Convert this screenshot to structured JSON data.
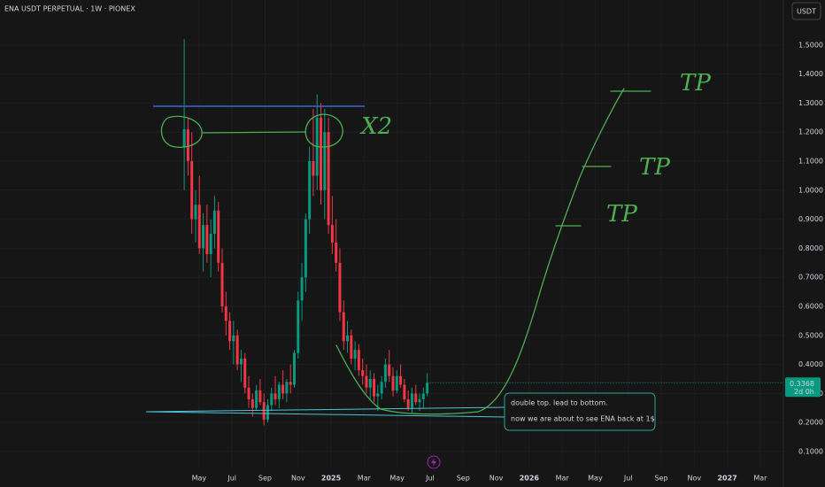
{
  "chart_data": {
    "type": "candlestick",
    "title": "ENA USDT PERPETUAL · 1W · PIONEX",
    "currency": "USDT",
    "countdown": "2d 0h",
    "up_color": "#089981",
    "down_color": "#f23645",
    "x": [
      3.1,
      3.33,
      3.56,
      3.79,
      4.02,
      4.25,
      4.48,
      4.71,
      4.94,
      5.17,
      5.4,
      5.63,
      5.86,
      6.09,
      6.32,
      6.55,
      6.78,
      7.01,
      7.24,
      7.47,
      7.7,
      7.93,
      8.16,
      8.39,
      8.62,
      8.85,
      9.08,
      9.31,
      9.54,
      9.77,
      10.0,
      10.23,
      10.46,
      10.69,
      10.92,
      11.15,
      11.38,
      11.61,
      11.84,
      12.07,
      12.3,
      12.53,
      12.76,
      12.99,
      13.22,
      13.45,
      13.68,
      13.91,
      14.14,
      14.37,
      14.6,
      14.83,
      15.06,
      15.29,
      15.52,
      15.75,
      15.98,
      16.21,
      16.44,
      16.67,
      16.9,
      17.13,
      17.36,
      17.59,
      17.82
    ],
    "open": [
      1.15,
      1.21,
      1.1,
      0.9,
      0.95,
      0.8,
      0.88,
      0.78,
      0.85,
      0.93,
      0.75,
      0.6,
      0.55,
      0.48,
      0.5,
      0.4,
      0.42,
      0.32,
      0.28,
      0.25,
      0.31,
      0.27,
      0.21,
      0.26,
      0.3,
      0.28,
      0.33,
      0.3,
      0.34,
      0.33,
      0.44,
      0.62,
      0.7,
      0.9,
      1.1,
      1.05,
      1.25,
      1.0,
      1.2,
      0.88,
      0.82,
      0.75,
      0.58,
      0.48,
      0.5,
      0.42,
      0.45,
      0.38,
      0.36,
      0.32,
      0.35,
      0.29,
      0.3,
      0.34,
      0.4,
      0.36,
      0.31,
      0.36,
      0.33,
      0.28,
      0.25,
      0.3,
      0.27,
      0.28,
      0.3
    ],
    "high": [
      1.52,
      1.25,
      1.2,
      1.0,
      1.05,
      0.92,
      0.95,
      0.9,
      0.98,
      0.96,
      0.8,
      0.65,
      0.58,
      0.55,
      0.52,
      0.45,
      0.44,
      0.36,
      0.3,
      0.33,
      0.35,
      0.3,
      0.28,
      0.32,
      0.36,
      0.34,
      0.38,
      0.35,
      0.4,
      0.45,
      0.65,
      0.75,
      0.92,
      1.15,
      1.28,
      1.33,
      1.3,
      1.28,
      1.25,
      0.98,
      0.9,
      0.8,
      0.62,
      0.55,
      0.52,
      0.48,
      0.47,
      0.42,
      0.4,
      0.38,
      0.37,
      0.33,
      0.36,
      0.42,
      0.45,
      0.39,
      0.38,
      0.4,
      0.35,
      0.31,
      0.32,
      0.33,
      0.3,
      0.32,
      0.37
    ],
    "low": [
      1.0,
      1.05,
      0.85,
      0.82,
      0.78,
      0.72,
      0.75,
      0.7,
      0.8,
      0.72,
      0.58,
      0.5,
      0.45,
      0.4,
      0.38,
      0.34,
      0.3,
      0.25,
      0.22,
      0.24,
      0.26,
      0.19,
      0.2,
      0.24,
      0.26,
      0.25,
      0.28,
      0.27,
      0.3,
      0.32,
      0.42,
      0.55,
      0.65,
      0.85,
      0.98,
      1.0,
      0.95,
      0.9,
      0.85,
      0.78,
      0.72,
      0.55,
      0.45,
      0.44,
      0.4,
      0.38,
      0.36,
      0.33,
      0.3,
      0.28,
      0.27,
      0.24,
      0.28,
      0.32,
      0.34,
      0.29,
      0.3,
      0.32,
      0.27,
      0.24,
      0.23,
      0.26,
      0.24,
      0.25,
      0.29
    ],
    "close": [
      1.21,
      1.1,
      0.9,
      0.95,
      0.8,
      0.88,
      0.78,
      0.85,
      0.93,
      0.75,
      0.6,
      0.55,
      0.48,
      0.5,
      0.4,
      0.42,
      0.32,
      0.28,
      0.25,
      0.31,
      0.27,
      0.21,
      0.26,
      0.3,
      0.28,
      0.33,
      0.3,
      0.34,
      0.33,
      0.44,
      0.62,
      0.7,
      0.9,
      1.1,
      1.05,
      1.25,
      1.0,
      1.2,
      0.88,
      0.82,
      0.75,
      0.58,
      0.48,
      0.5,
      0.42,
      0.45,
      0.38,
      0.36,
      0.32,
      0.35,
      0.29,
      0.3,
      0.34,
      0.4,
      0.36,
      0.31,
      0.36,
      0.33,
      0.28,
      0.25,
      0.3,
      0.27,
      0.28,
      0.3,
      0.3368
    ],
    "xlim": [
      -8.06,
      39.4
    ],
    "xticks": [
      {
        "value": 4,
        "label": "May"
      },
      {
        "value": 6,
        "label": "Jul"
      },
      {
        "value": 8,
        "label": "Sep"
      },
      {
        "value": 10,
        "label": "Nov"
      },
      {
        "value": 12,
        "label": "2025"
      },
      {
        "value": 14,
        "label": "Mar"
      },
      {
        "value": 16,
        "label": "May"
      },
      {
        "value": 18,
        "label": "Jul"
      },
      {
        "value": 20,
        "label": "Sep"
      },
      {
        "value": 22,
        "label": "Nov"
      },
      {
        "value": 24,
        "label": "2026"
      },
      {
        "value": 26,
        "label": "Mar"
      },
      {
        "value": 28,
        "label": "May"
      },
      {
        "value": 30,
        "label": "Jul"
      },
      {
        "value": 32,
        "label": "Sep"
      },
      {
        "value": 34,
        "label": "Nov"
      },
      {
        "value": 36,
        "label": "2027"
      },
      {
        "value": 38,
        "label": "Mar"
      }
    ],
    "ylim": [
      0.045,
      1.655
    ],
    "yticks": [
      {
        "value": 0.1,
        "label": "0.1000"
      },
      {
        "value": 0.2,
        "label": "0.2000"
      },
      {
        "value": 0.3,
        "label": "0.3000"
      },
      {
        "value": 0.4,
        "label": "0.4000"
      },
      {
        "value": 0.5,
        "label": "0.5000"
      },
      {
        "value": 0.6,
        "label": "0.6000"
      },
      {
        "value": 0.7,
        "label": "0.7000"
      },
      {
        "value": 0.8,
        "label": "0.8000"
      },
      {
        "value": 0.9,
        "label": "0.9000"
      },
      {
        "value": 1,
        "label": "1.0000"
      },
      {
        "value": 1.1,
        "label": "1.1000"
      },
      {
        "value": 1.2,
        "label": "1.2000"
      },
      {
        "value": 1.3,
        "label": "1.3000"
      },
      {
        "value": 1.4,
        "label": "1.4000"
      },
      {
        "value": 1.5,
        "label": "1.5000"
      }
    ],
    "annotations": {
      "double_top": "X2",
      "tp_high": "TP",
      "tp_mid": "TP",
      "tp_low": "TP",
      "note_line1": "double top. lead to bottom.",
      "note_line2": "now we are about to see ENA back at 1$"
    }
  }
}
